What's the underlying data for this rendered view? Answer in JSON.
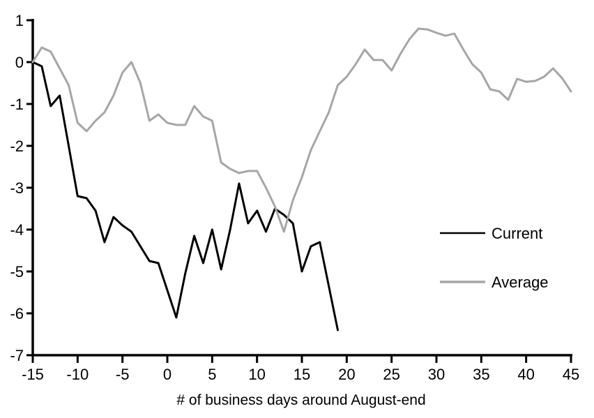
{
  "chart_data": {
    "type": "line",
    "title": "",
    "xlabel": "# of business days around August-end",
    "ylabel": "",
    "xlim": [
      -15,
      45
    ],
    "ylim": [
      -7,
      1
    ],
    "x_ticks": [
      -15,
      -10,
      -5,
      0,
      5,
      10,
      15,
      20,
      25,
      30,
      35,
      40,
      45
    ],
    "y_ticks": [
      1,
      0,
      -1,
      -2,
      -3,
      -4,
      -5,
      -6,
      -7
    ],
    "grid": false,
    "background_color": "#ffffff",
    "axis_color": "#000000",
    "legend_position": "middle-right",
    "series": [
      {
        "name": "Current",
        "color": "#000000",
        "x": [
          -15,
          -14,
          -13,
          -12,
          -11,
          -10,
          -9,
          -8,
          -7,
          -6,
          -5,
          -4,
          -3,
          -2,
          -1,
          0,
          1,
          2,
          3,
          4,
          5,
          6,
          7,
          8,
          9,
          10,
          11,
          12,
          13,
          14,
          15,
          16,
          17,
          18,
          19
        ],
        "values": [
          0.0,
          -0.1,
          -1.05,
          -0.8,
          -2.0,
          -3.2,
          -3.25,
          -3.55,
          -4.3,
          -3.7,
          -3.9,
          -4.05,
          -4.4,
          -4.75,
          -4.8,
          -5.45,
          -6.1,
          -5.05,
          -4.15,
          -4.8,
          -4.0,
          -4.95,
          -4.0,
          -2.9,
          -3.85,
          -3.55,
          -4.05,
          -3.5,
          -3.65,
          -3.85,
          -5.0,
          -4.4,
          -4.3,
          -5.35,
          -6.4
        ]
      },
      {
        "name": "Average",
        "color": "#a6a6a6",
        "x": [
          -15,
          -14,
          -13,
          -12,
          -11,
          -10,
          -9,
          -8,
          -7,
          -6,
          -5,
          -4,
          -3,
          -2,
          -1,
          0,
          1,
          2,
          3,
          4,
          5,
          6,
          7,
          8,
          9,
          10,
          11,
          12,
          13,
          14,
          15,
          16,
          17,
          18,
          19,
          20,
          21,
          22,
          23,
          24,
          25,
          26,
          27,
          28,
          29,
          30,
          31,
          32,
          33,
          34,
          35,
          36,
          37,
          38,
          39,
          40,
          41,
          42,
          43,
          44,
          45
        ],
        "values": [
          0.0,
          0.35,
          0.25,
          -0.15,
          -0.55,
          -1.45,
          -1.65,
          -1.4,
          -1.2,
          -0.8,
          -0.25,
          0.0,
          -0.5,
          -1.4,
          -1.25,
          -1.45,
          -1.5,
          -1.5,
          -1.05,
          -1.3,
          -1.4,
          -2.4,
          -2.55,
          -2.65,
          -2.6,
          -2.6,
          -3.0,
          -3.45,
          -4.05,
          -3.3,
          -2.75,
          -2.1,
          -1.65,
          -1.2,
          -0.55,
          -0.35,
          -0.05,
          0.3,
          0.05,
          0.05,
          -0.2,
          0.2,
          0.55,
          0.8,
          0.78,
          0.7,
          0.63,
          0.68,
          0.3,
          -0.05,
          -0.25,
          -0.65,
          -0.7,
          -0.9,
          -0.4,
          -0.47,
          -0.45,
          -0.35,
          -0.15,
          -0.38,
          -0.7
        ]
      }
    ]
  }
}
